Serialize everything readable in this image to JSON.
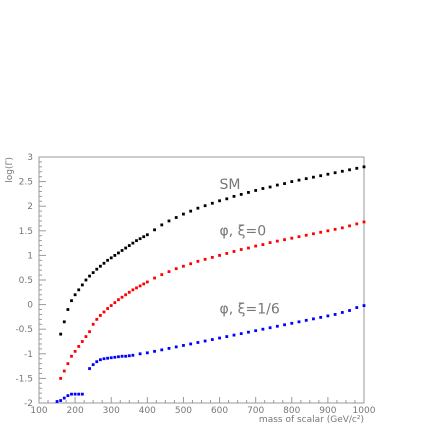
{
  "chart_data": {
    "type": "scatter",
    "title": "",
    "xlabel": "mass of scalar (GeV/c²)",
    "ylabel": "log(Γ)",
    "xlim": [
      100,
      1000
    ],
    "ylim": [
      -2,
      3
    ],
    "x_ticks": [
      "100",
      "200",
      "300",
      "400",
      "500",
      "600",
      "700",
      "800",
      "900",
      "1000"
    ],
    "y_ticks": [
      "-2",
      "-1.5",
      "-1",
      "-0.5",
      "0",
      "0.5",
      "1",
      "1.5",
      "2",
      "2.5",
      "3"
    ],
    "grid": false,
    "legend": "none",
    "annotations": [
      {
        "text": "SM",
        "x": 600,
        "y": 2.35
      },
      {
        "text": "φ, ξ=0",
        "x": 600,
        "y": 1.4
      },
      {
        "text": "φ, ξ=1/6",
        "x": 600,
        "y": -0.18
      }
    ],
    "series": [
      {
        "color": "#000000",
        "x": [
          160,
          170,
          180,
          190,
          200,
          210,
          220,
          230,
          240,
          250,
          260,
          270,
          280,
          290,
          300,
          310,
          320,
          330,
          340,
          350,
          360,
          370,
          380,
          390,
          400,
          420,
          440,
          460,
          480,
          500,
          520,
          540,
          560,
          580,
          600,
          620,
          640,
          660,
          680,
          700,
          720,
          740,
          760,
          780,
          800,
          820,
          840,
          860,
          880,
          900,
          920,
          940,
          960,
          980,
          1000
        ],
        "y": [
          -0.6,
          -0.35,
          -0.1,
          0.08,
          0.2,
          0.3,
          0.4,
          0.5,
          0.58,
          0.65,
          0.72,
          0.78,
          0.84,
          0.9,
          0.95,
          1.0,
          1.05,
          1.1,
          1.15,
          1.2,
          1.25,
          1.3,
          1.34,
          1.38,
          1.42,
          1.52,
          1.62,
          1.7,
          1.77,
          1.84,
          1.9,
          1.96,
          2.01,
          2.06,
          2.11,
          2.15,
          2.2,
          2.24,
          2.28,
          2.32,
          2.36,
          2.39,
          2.43,
          2.46,
          2.5,
          2.53,
          2.56,
          2.59,
          2.62,
          2.65,
          2.68,
          2.71,
          2.74,
          2.77,
          2.8
        ]
      },
      {
        "color": "#ff0000",
        "x": [
          160,
          170,
          180,
          190,
          200,
          210,
          220,
          230,
          240,
          250,
          260,
          270,
          280,
          290,
          300,
          310,
          320,
          330,
          340,
          350,
          360,
          370,
          380,
          390,
          400,
          420,
          440,
          460,
          480,
          500,
          520,
          540,
          560,
          580,
          600,
          620,
          640,
          660,
          680,
          700,
          720,
          740,
          760,
          780,
          800,
          820,
          840,
          860,
          880,
          900,
          920,
          940,
          960,
          980,
          1000
        ],
        "y": [
          -1.5,
          -1.35,
          -1.2,
          -1.05,
          -0.95,
          -0.85,
          -0.75,
          -0.65,
          -0.55,
          -0.4,
          -0.3,
          -0.22,
          -0.15,
          -0.08,
          -0.02,
          0.04,
          0.1,
          0.15,
          0.2,
          0.25,
          0.3,
          0.34,
          0.38,
          0.42,
          0.46,
          0.54,
          0.61,
          0.67,
          0.73,
          0.78,
          0.83,
          0.88,
          0.92,
          0.96,
          1.0,
          1.04,
          1.08,
          1.12,
          1.15,
          1.19,
          1.22,
          1.26,
          1.29,
          1.32,
          1.35,
          1.38,
          1.41,
          1.44,
          1.47,
          1.5,
          1.53,
          1.56,
          1.6,
          1.64,
          1.68
        ]
      },
      {
        "color": "#0000ff",
        "x": [
          150,
          160,
          170,
          180,
          190,
          200,
          210,
          220,
          240,
          250,
          260,
          270,
          280,
          290,
          300,
          310,
          320,
          330,
          340,
          350,
          360,
          380,
          400,
          420,
          440,
          460,
          480,
          500,
          520,
          540,
          560,
          580,
          600,
          620,
          640,
          660,
          680,
          700,
          720,
          740,
          760,
          780,
          800,
          820,
          840,
          860,
          880,
          900,
          920,
          940,
          960,
          980,
          1000
        ],
        "y": [
          -1.97,
          -1.95,
          -1.9,
          -1.85,
          -1.82,
          -1.82,
          -1.82,
          -1.82,
          -1.3,
          -1.22,
          -1.16,
          -1.12,
          -1.1,
          -1.09,
          -1.08,
          -1.07,
          -1.06,
          -1.05,
          -1.05,
          -1.04,
          -1.03,
          -1.0,
          -0.98,
          -0.95,
          -0.92,
          -0.89,
          -0.86,
          -0.83,
          -0.8,
          -0.77,
          -0.74,
          -0.71,
          -0.68,
          -0.65,
          -0.62,
          -0.59,
          -0.56,
          -0.53,
          -0.5,
          -0.47,
          -0.44,
          -0.41,
          -0.38,
          -0.35,
          -0.32,
          -0.29,
          -0.26,
          -0.23,
          -0.2,
          -0.16,
          -0.12,
          -0.06,
          -0.02
        ]
      }
    ]
  }
}
